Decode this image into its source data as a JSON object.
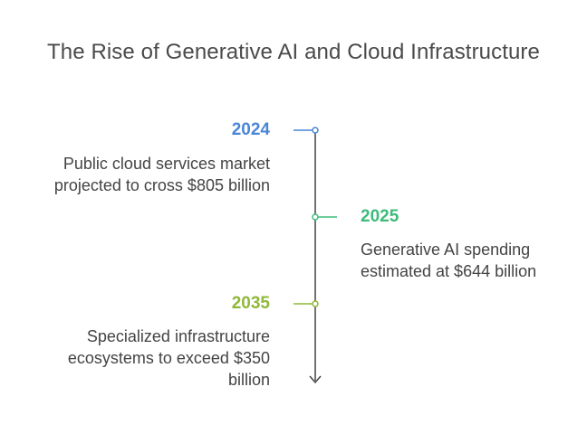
{
  "title": "The Rise of Generative AI and Cloud Infrastructure",
  "colors": {
    "line": "#444444",
    "event_1": "#4a86d6",
    "event_2": "#3dbb7a",
    "event_3": "#8fb83a",
    "text": "#444444"
  },
  "events": [
    {
      "year": "2024",
      "side": "left",
      "lines": [
        "Public cloud services market",
        "projected to cross $805 billion"
      ]
    },
    {
      "year": "2025",
      "side": "right",
      "lines": [
        "Generative AI spending",
        "estimated at $644 billion"
      ]
    },
    {
      "year": "2035",
      "side": "left",
      "lines": [
        "Specialized infrastructure",
        "ecosystems to exceed $350",
        "billion"
      ]
    }
  ]
}
